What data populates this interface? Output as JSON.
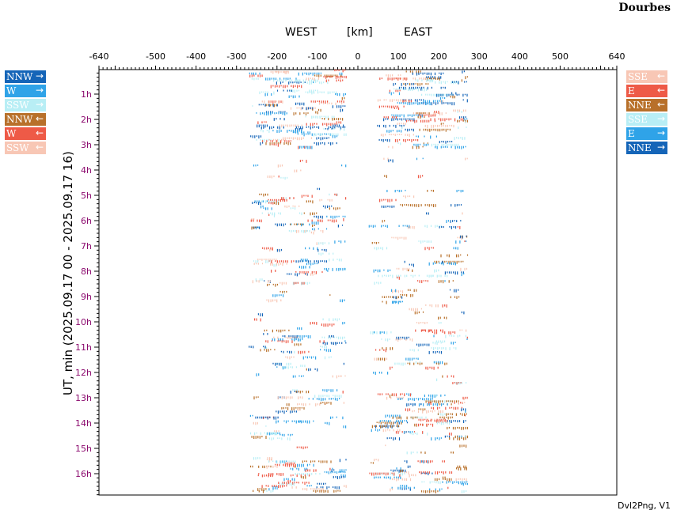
{
  "station": "Dourbes",
  "footer": "Dvl2Png, V1",
  "header": {
    "west": "WEST",
    "unit": "[km]",
    "east": "EAST"
  },
  "legend_left": [
    {
      "label": "NNW",
      "arrow": "→",
      "color": "#1565b8"
    },
    {
      "label": "W",
      "arrow": "→",
      "color": "#2fa3e8"
    },
    {
      "label": "SSW",
      "arrow": "→",
      "color": "#b8eef5"
    },
    {
      "label": "NNW",
      "arrow": "←",
      "color": "#b8702a"
    },
    {
      "label": "W",
      "arrow": "←",
      "color": "#ee5a47"
    },
    {
      "label": "SSW",
      "arrow": "←",
      "color": "#f8c7b5"
    }
  ],
  "legend_right": [
    {
      "label": "SSE",
      "arrow": "←",
      "color": "#f8c7b5"
    },
    {
      "label": "E",
      "arrow": "←",
      "color": "#ee5a47"
    },
    {
      "label": "NNE",
      "arrow": "←",
      "color": "#b8702a"
    },
    {
      "label": "SSE",
      "arrow": "→",
      "color": "#b8eef5"
    },
    {
      "label": "E",
      "arrow": "→",
      "color": "#2fa3e8"
    },
    {
      "label": "NNE",
      "arrow": "→",
      "color": "#1565b8"
    }
  ],
  "chart_data": {
    "type": "scatter",
    "xlabel": "[km]",
    "ylabel": "UT, min (2025.09.17 00 - 2025.09.17 16)",
    "xlim": [
      -640,
      640
    ],
    "ylim_hours": [
      0,
      16.85
    ],
    "x_ticks": [
      -640,
      -500,
      -400,
      -300,
      -200,
      -100,
      0,
      100,
      200,
      300,
      400,
      500,
      640
    ],
    "y_ticks": [
      {
        "h": 1,
        "label": "1h"
      },
      {
        "h": 2,
        "label": "2h"
      },
      {
        "h": 3,
        "label": "3h"
      },
      {
        "h": 4,
        "label": "4h"
      },
      {
        "h": 5,
        "label": "5h"
      },
      {
        "h": 6,
        "label": "6h"
      },
      {
        "h": 7,
        "label": "7h"
      },
      {
        "h": 8,
        "label": "8h"
      },
      {
        "h": 9,
        "label": "9h"
      },
      {
        "h": 10,
        "label": "10h"
      },
      {
        "h": 11,
        "label": "11h"
      },
      {
        "h": 12,
        "label": "12h"
      },
      {
        "h": 13,
        "label": "13h"
      },
      {
        "h": 14,
        "label": "14h"
      },
      {
        "h": 15,
        "label": "15h"
      },
      {
        "h": 16,
        "label": "16h"
      }
    ],
    "grid": false,
    "palette": [
      "#1565b8",
      "#2fa3e8",
      "#b8eef5",
      "#b8702a",
      "#ee5a47",
      "#f8c7b5"
    ],
    "west_range_km": [
      -270,
      -30
    ],
    "east_range_km": [
      25,
      270
    ],
    "activity": [
      {
        "from": 0.0,
        "to": 3.1,
        "density": 0.9,
        "west": true,
        "east": true
      },
      {
        "from": 3.5,
        "to": 4.5,
        "density": 0.2,
        "west": true,
        "east": true
      },
      {
        "from": 4.5,
        "to": 7.5,
        "density": 0.55,
        "west": true,
        "east": true
      },
      {
        "from": 7.5,
        "to": 8.2,
        "density": 0.9,
        "west": true,
        "east": true
      },
      {
        "from": 8.2,
        "to": 10.3,
        "density": 0.45,
        "west": true,
        "east": true
      },
      {
        "from": 10.3,
        "to": 11.2,
        "density": 0.7,
        "west": true,
        "east": true
      },
      {
        "from": 11.2,
        "to": 12.8,
        "density": 0.4,
        "west": true,
        "east": true
      },
      {
        "from": 12.8,
        "to": 13.6,
        "density": 0.95,
        "west": true,
        "east": true
      },
      {
        "from": 13.6,
        "to": 14.7,
        "density": 0.85,
        "west": true,
        "east": true
      },
      {
        "from": 14.7,
        "to": 15.4,
        "density": 0.3,
        "west": true,
        "east": true
      },
      {
        "from": 15.4,
        "to": 16.85,
        "density": 0.9,
        "west": true,
        "east": true
      }
    ]
  }
}
